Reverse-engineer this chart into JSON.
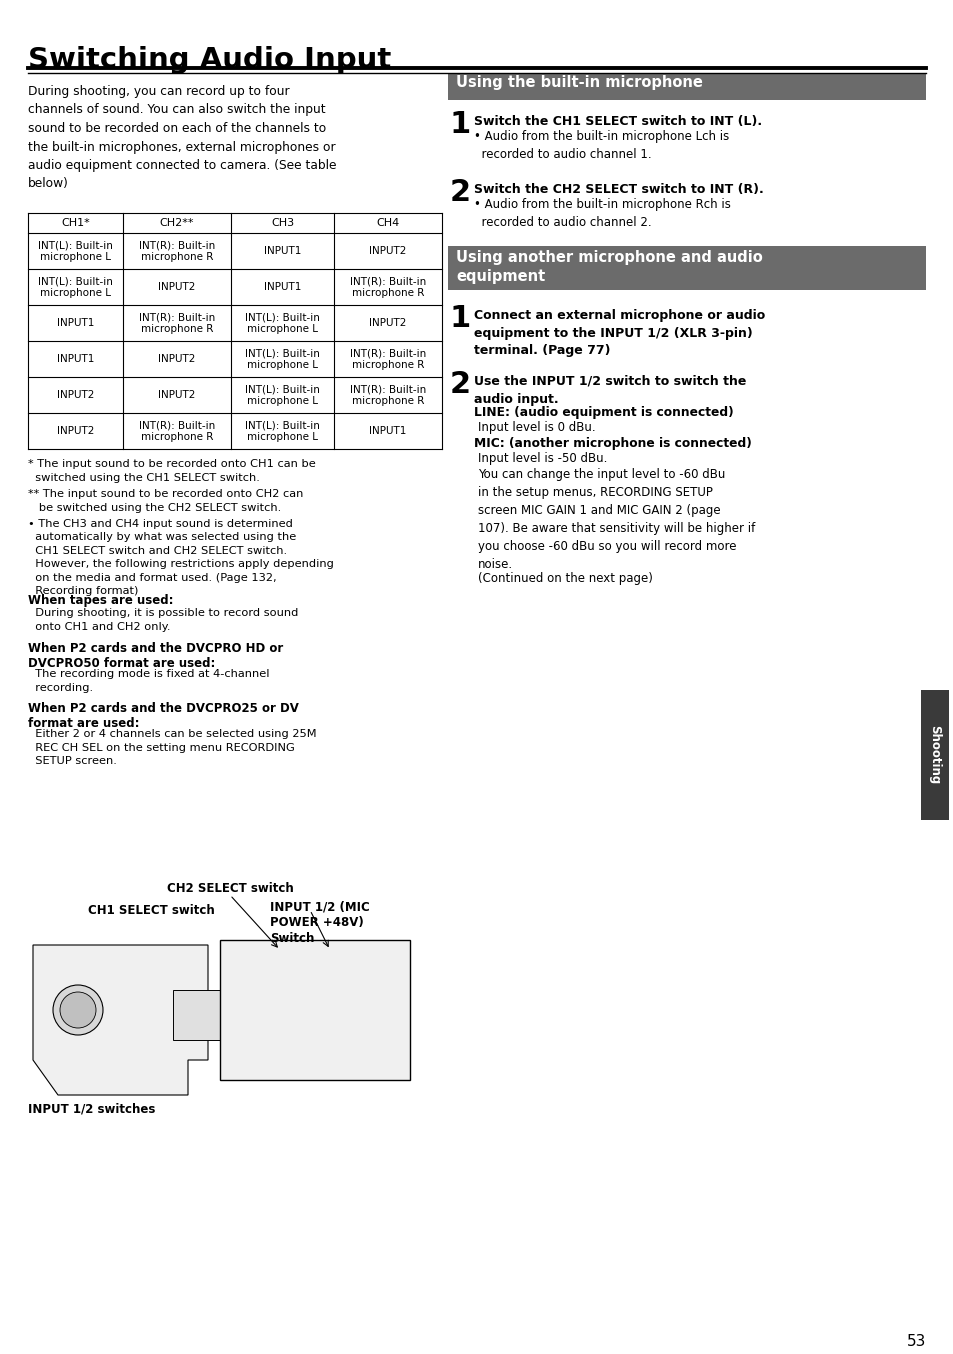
{
  "title": "Switching Audio Input",
  "bg_color": "#ffffff",
  "left_col_text": "During shooting, you can record up to four\nchannels of sound. You can also switch the input\nsound to be recorded on each of the channels to\nthe built-in microphones, external microphones or\naudio equipment connected to camera. (See table\nbelow)",
  "table_headers": [
    "CH1*",
    "CH2**",
    "CH3",
    "CH4"
  ],
  "table_rows": [
    [
      "INT(L): Built-in\nmicrophone L",
      "INT(R): Built-in\nmicrophone R",
      "INPUT1",
      "INPUT2"
    ],
    [
      "INT(L): Built-in\nmicrophone L",
      "INPUT2",
      "INPUT1",
      "INT(R): Built-in\nmicrophone R"
    ],
    [
      "INPUT1",
      "INT(R): Built-in\nmicrophone R",
      "INT(L): Built-in\nmicrophone L",
      "INPUT2"
    ],
    [
      "INPUT1",
      "INPUT2",
      "INT(L): Built-in\nmicrophone L",
      "INT(R): Built-in\nmicrophone R"
    ],
    [
      "INPUT2",
      "INPUT2",
      "INT(L): Built-in\nmicrophone L",
      "INT(R): Built-in\nmicrophone R"
    ],
    [
      "INPUT2",
      "INT(R): Built-in\nmicrophone R",
      "INT(L): Built-in\nmicrophone L",
      "INPUT1"
    ]
  ],
  "fn1": "* The input sound to be recorded onto CH1 can be\n  switched using the CH1 SELECT switch.",
  "fn2": "** The input sound to be recorded onto CH2 can\n   be switched using the CH2 SELECT switch.",
  "fn3_bullet": "• The CH3 and CH4 input sound is determined",
  "fn3_rest": "  automatically by what was selected using the\n  CH1 SELECT switch and CH2 SELECT switch.\n  However, the following restrictions apply depending\n  on the media and format used. (Page 132,\n  Recording format)",
  "when_tapes": "When tapes are used:",
  "when_tapes_text": "  During shooting, it is possible to record sound\n  onto CH1 and CH2 only.",
  "when_p2hd": "When P2 cards and the DVCPRO HD or\nDVCPRO50 format are used:",
  "when_p2hd_text": "  The recording mode is fixed at 4-channel\n  recording.",
  "when_p2dv": "When P2 cards and the DVCPRO25 or DV\nformat are used:",
  "when_p2dv_text": "  Either 2 or 4 channels can be selected using 25M\n  REC CH SEL on the setting menu RECORDING\n  SETUP screen.",
  "label_ch2": "CH2 SELECT switch",
  "label_ch1": "CH1 SELECT switch",
  "label_input_mic": "INPUT 1/2 (MIC\nPOWER +48V)\nSwitch",
  "label_input12_switches": "INPUT 1/2 switches",
  "section1_title": "Using the built-in microphone",
  "sec1_step1_bold": "Switch the CH1 SELECT switch to INT (L).",
  "sec1_step1_bullet": "• Audio from the built-in microphone Lch is\n  recorded to audio channel 1.",
  "sec1_step2_bold": "Switch the CH2 SELECT switch to INT (R).",
  "sec1_step2_bullet": "• Audio from the built-in microphone Rch is\n  recorded to audio channel 2.",
  "section2_title": "Using another microphone and audio\nequipment",
  "sec2_step1_bold": "Connect an external microphone or audio\nequipment to the INPUT 1/2 (XLR 3-pin)\nterminal. (Page 77)",
  "sec2_step2_bold": "Use the INPUT 1/2 switch to switch the\naudio input.",
  "sec2_line_bold": "LINE: (audio equipment is connected)",
  "sec2_line_text": "Input level is 0 dBu.",
  "sec2_mic_bold": "MIC: (another microphone is connected)",
  "sec2_mic_text": "Input level is -50 dBu.",
  "sec2_body": "You can change the input level to -60 dBu\nin the setup menus, RECORDING SETUP\nscreen MIC GAIN 1 and MIC GAIN 2 (page\n107). Be aware that sensitivity will be higher if\nyou choose -60 dBu so you will record more\nnoise.",
  "continued": "(Continued on the next page)",
  "shooting_label": "Shooting",
  "page_num": "53",
  "header_bg": "#6b6b6b",
  "header_fg": "#ffffff"
}
